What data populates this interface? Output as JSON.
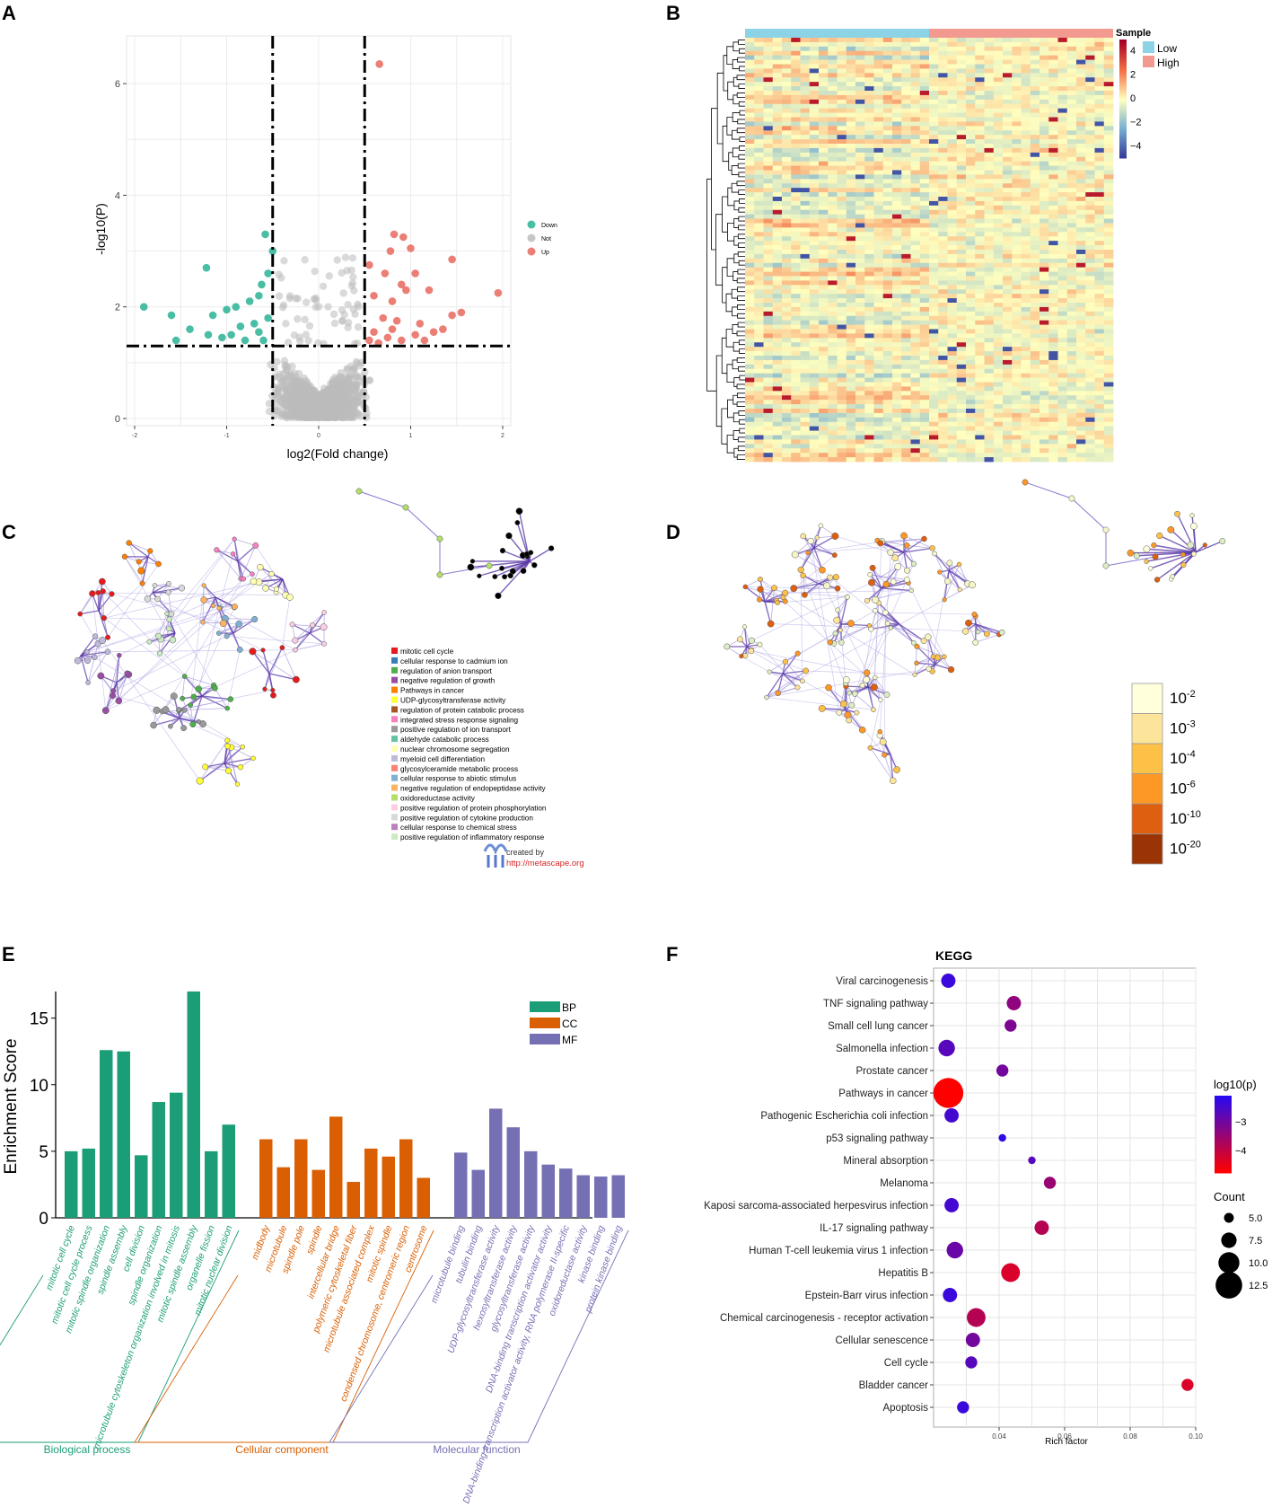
{
  "panels": {
    "A": "A",
    "B": "B",
    "C": "C",
    "D": "D",
    "E": "E",
    "F": "F"
  },
  "colors": {
    "down": "#2ab195",
    "not": "#bcbcbc",
    "up": "#e8685e",
    "low": "#8dd3e6",
    "high": "#f29a8f",
    "bp": "#1b9e77",
    "cc": "#d95f02",
    "mf": "#7570b3",
    "purple": "#5b3aa8"
  },
  "chart_data": [
    {
      "type": "scatter",
      "panel": "A",
      "xlabel": "log2(Fold change)",
      "ylabel": "-log10(P)",
      "xlim": [
        -2,
        2
      ],
      "ylim": [
        0,
        6.5
      ],
      "xticks": [
        "-2",
        "-1",
        "0",
        "1",
        "2"
      ],
      "yticks": [
        "0",
        "2",
        "4",
        "6"
      ],
      "thresholds": {
        "x": [
          -0.5,
          0.5
        ],
        "y": 1.3
      },
      "legend": [
        {
          "key": "down",
          "label": "Down"
        },
        {
          "key": "not",
          "label": "Not"
        },
        {
          "key": "up",
          "label": "Up"
        }
      ],
      "up_points": [
        [
          0.66,
          6.35
        ],
        [
          0.82,
          3.3
        ],
        [
          0.92,
          3.25
        ],
        [
          0.78,
          3.0
        ],
        [
          1.0,
          3.05
        ],
        [
          1.45,
          2.85
        ],
        [
          0.55,
          2.75
        ],
        [
          0.72,
          2.6
        ],
        [
          0.9,
          2.4
        ],
        [
          1.05,
          2.6
        ],
        [
          0.6,
          2.2
        ],
        [
          0.8,
          2.1
        ],
        [
          0.95,
          2.3
        ],
        [
          1.2,
          2.3
        ],
        [
          1.95,
          2.25
        ],
        [
          1.45,
          1.85
        ],
        [
          1.55,
          1.9
        ],
        [
          1.35,
          1.6
        ],
        [
          1.25,
          1.55
        ],
        [
          0.7,
          1.8
        ],
        [
          0.85,
          1.75
        ],
        [
          1.1,
          1.7
        ],
        [
          0.6,
          1.55
        ],
        [
          0.75,
          1.45
        ],
        [
          0.9,
          1.4
        ],
        [
          1.05,
          1.5
        ],
        [
          0.55,
          1.4
        ],
        [
          0.65,
          1.35
        ],
        [
          1.15,
          1.4
        ],
        [
          0.8,
          1.6
        ]
      ],
      "down_points": [
        [
          -0.58,
          3.3
        ],
        [
          -0.5,
          3.0
        ],
        [
          -0.55,
          2.6
        ],
        [
          -0.62,
          2.4
        ],
        [
          -1.22,
          2.7
        ],
        [
          -0.65,
          2.2
        ],
        [
          -0.75,
          2.1
        ],
        [
          -0.9,
          2.0
        ],
        [
          -1.0,
          1.95
        ],
        [
          -1.15,
          1.85
        ],
        [
          -1.6,
          1.85
        ],
        [
          -1.9,
          2.0
        ],
        [
          -1.4,
          1.6
        ],
        [
          -1.55,
          1.4
        ],
        [
          -0.7,
          1.7
        ],
        [
          -0.85,
          1.65
        ],
        [
          -0.95,
          1.5
        ],
        [
          -1.05,
          1.45
        ],
        [
          -0.6,
          1.4
        ],
        [
          -0.8,
          1.4
        ],
        [
          -1.2,
          1.5
        ],
        [
          -0.55,
          1.8
        ],
        [
          -0.65,
          1.55
        ]
      ]
    },
    {
      "type": "heatmap",
      "panel": "B",
      "legend_title": "Sample",
      "groups": [
        {
          "label": "Low"
        },
        {
          "label": "High"
        }
      ],
      "scale_ticks": [
        "4",
        "2",
        "0",
        "−2",
        "−4"
      ],
      "rows": 96,
      "cols": 40
    },
    {
      "type": "network",
      "panel": "C",
      "legend": [
        {
          "label": "mitotic cell cycle",
          "color": "#e41a1c"
        },
        {
          "label": "cellular response to cadmium ion",
          "color": "#377eb8"
        },
        {
          "label": "regulation of anion transport",
          "color": "#4daf4a"
        },
        {
          "label": "negative regulation of growth",
          "color": "#984ea3"
        },
        {
          "label": "Pathways in cancer",
          "color": "#ff7f00"
        },
        {
          "label": "UDP-glycosyltransferase activity",
          "color": "#ffff33"
        },
        {
          "label": "regulation of protein catabolic process",
          "color": "#a65628"
        },
        {
          "label": "integrated stress response signaling",
          "color": "#f781bf"
        },
        {
          "label": "positive regulation of ion transport",
          "color": "#999999"
        },
        {
          "label": "aldehyde catabolic process",
          "color": "#66c2a5"
        },
        {
          "label": "nuclear chromosome segregation",
          "color": "#ffffb3"
        },
        {
          "label": "myeloid cell differentiation",
          "color": "#bebada"
        },
        {
          "label": "glycosylceramide metabolic process",
          "color": "#fb8072"
        },
        {
          "label": "cellular response to abiotic stimulus",
          "color": "#80b1d3"
        },
        {
          "label": "negative regulation of endopeptidase activity",
          "color": "#fdb462"
        },
        {
          "label": "oxidoreductase activity",
          "color": "#b3de69"
        },
        {
          "label": "positive regulation of protein phosphorylation",
          "color": "#fccde5"
        },
        {
          "label": "positive regulation of cytokine production",
          "color": "#d9d9d9"
        },
        {
          "label": "cellular response to chemical stress",
          "color": "#bc80bd"
        },
        {
          "label": "positive regulation of inflammatory response",
          "color": "#ccebc5"
        }
      ],
      "credit": {
        "line1": "created by",
        "line2": "http://metascape.org"
      }
    },
    {
      "type": "network",
      "panel": "D",
      "pvalue_legend": [
        {
          "base": "10",
          "exp": "-2",
          "color": "#ffffdc"
        },
        {
          "base": "10",
          "exp": "-3",
          "color": "#fde49b"
        },
        {
          "base": "10",
          "exp": "-4",
          "color": "#fdc148"
        },
        {
          "base": "10",
          "exp": "-6",
          "color": "#fd9826"
        },
        {
          "base": "10",
          "exp": "-10",
          "color": "#df5f11"
        },
        {
          "base": "10",
          "exp": "-20",
          "color": "#9a3405"
        }
      ]
    },
    {
      "type": "bar",
      "panel": "E",
      "ylabel": "Enrichment Score",
      "ylim": [
        0,
        17
      ],
      "yticks": [
        "0",
        "5",
        "10",
        "15"
      ],
      "legend": [
        {
          "key": "bp",
          "label": "BP"
        },
        {
          "key": "cc",
          "label": "CC"
        },
        {
          "key": "mf",
          "label": "MF"
        }
      ],
      "groups": [
        {
          "key": "bp",
          "name": "Biological process",
          "categories": [
            "mitotic cell cycle",
            "mitotic cell cycle process",
            "mitotic spindle organization",
            "spindle assembly",
            "cell division",
            "spindle organization",
            "microtubule cytoskeleton organization involved in mitosis",
            "mitotic spindle assembly",
            "organelle fission",
            "mitotic nuclear division"
          ],
          "values": [
            5.0,
            5.2,
            12.6,
            12.5,
            4.7,
            8.7,
            9.4,
            17.0,
            5.0,
            7.0
          ]
        },
        {
          "key": "cc",
          "name": "Cellular component",
          "categories": [
            "midbody",
            "microtubule",
            "spindle pole",
            "spindle",
            "intercellular bridge",
            "polymeric cytoskeletal fiber",
            "microtubule associated complex",
            "mitotic spindle",
            "condensed chromosome, centromeric region",
            "centrosome"
          ],
          "values": [
            5.9,
            3.8,
            5.9,
            3.6,
            7.6,
            2.7,
            5.2,
            4.6,
            5.9,
            3.0
          ]
        },
        {
          "key": "mf",
          "name": "Molecular function",
          "categories": [
            "microtubule binding",
            "tubulin binding",
            "UDP-glycosyltransferase activity",
            "hexosyltransferase activity",
            "glycosyltransferase activity",
            "DNA-binding transcription activator activity",
            "DNA-binding transcription activator activity, RNA polymerase II-specific",
            "oxidoreductase activity",
            "kinase binding",
            "protein kinase binding"
          ],
          "values": [
            4.9,
            3.6,
            8.2,
            6.8,
            5.0,
            4.0,
            3.7,
            3.2,
            3.1,
            3.2
          ]
        }
      ]
    },
    {
      "type": "scatter",
      "panel": "F",
      "title": "KEGG",
      "xlabel": "Rich factor",
      "xlim": [
        0.02,
        0.1
      ],
      "xticks": [
        0.04,
        0.06,
        0.08,
        0.1
      ],
      "xtick_labels": [
        "0.04",
        "0.06",
        "0.08",
        "0.10"
      ],
      "color_legend": {
        "title": "log10(p)",
        "ticks": [
          "−3",
          "−4"
        ],
        "range": [
          -2.4,
          -4.7
        ]
      },
      "size_legend": {
        "title": "Count",
        "values": [
          5.0,
          7.5,
          10.0,
          12.5
        ],
        "labels": [
          "5.0",
          "7.5",
          "10.0",
          "12.5"
        ]
      },
      "points": [
        {
          "term": "Viral carcinogenesis",
          "rich": 0.0245,
          "count": 7,
          "log10p": -2.6
        },
        {
          "term": "TNF signaling pathway",
          "rich": 0.0445,
          "count": 7,
          "log10p": -3.5
        },
        {
          "term": "Small cell lung cancer",
          "rich": 0.0435,
          "count": 6,
          "log10p": -3.3
        },
        {
          "term": "Salmonella infection",
          "rich": 0.024,
          "count": 8,
          "log10p": -2.9
        },
        {
          "term": "Prostate cancer",
          "rich": 0.041,
          "count": 6,
          "log10p": -3.2
        },
        {
          "term": "Pathways in cancer",
          "rich": 0.0245,
          "count": 14,
          "log10p": -4.7
        },
        {
          "term": "Pathogenic Escherichia coli infection",
          "rich": 0.0255,
          "count": 7,
          "log10p": -2.7
        },
        {
          "term": "p53 signaling pathway",
          "rich": 0.041,
          "count": 4,
          "log10p": -2.5
        },
        {
          "term": "Mineral absorption",
          "rich": 0.05,
          "count": 4,
          "log10p": -2.9
        },
        {
          "term": "Melanoma",
          "rich": 0.0555,
          "count": 6,
          "log10p": -3.6
        },
        {
          "term": "Kaposi sarcoma-associated herpesvirus infection",
          "rich": 0.0255,
          "count": 7,
          "log10p": -2.7
        },
        {
          "term": "IL-17 signaling pathway",
          "rich": 0.053,
          "count": 7,
          "log10p": -3.9
        },
        {
          "term": "Human T-cell leukemia virus 1 infection",
          "rich": 0.0265,
          "count": 8,
          "log10p": -3.1
        },
        {
          "term": "Hepatitis B",
          "rich": 0.0435,
          "count": 9,
          "log10p": -4.3
        },
        {
          "term": "Epstein-Barr virus infection",
          "rich": 0.025,
          "count": 7,
          "log10p": -2.6
        },
        {
          "term": "Chemical carcinogenesis - receptor activation",
          "rich": 0.033,
          "count": 9,
          "log10p": -3.9
        },
        {
          "term": "Cellular senescence",
          "rich": 0.032,
          "count": 7,
          "log10p": -3.2
        },
        {
          "term": "Cell cycle",
          "rich": 0.0315,
          "count": 6,
          "log10p": -2.9
        },
        {
          "term": "Bladder cancer",
          "rich": 0.0975,
          "count": 6,
          "log10p": -4.3
        },
        {
          "term": "Apoptosis",
          "rich": 0.029,
          "count": 6,
          "log10p": -2.6
        }
      ]
    }
  ]
}
